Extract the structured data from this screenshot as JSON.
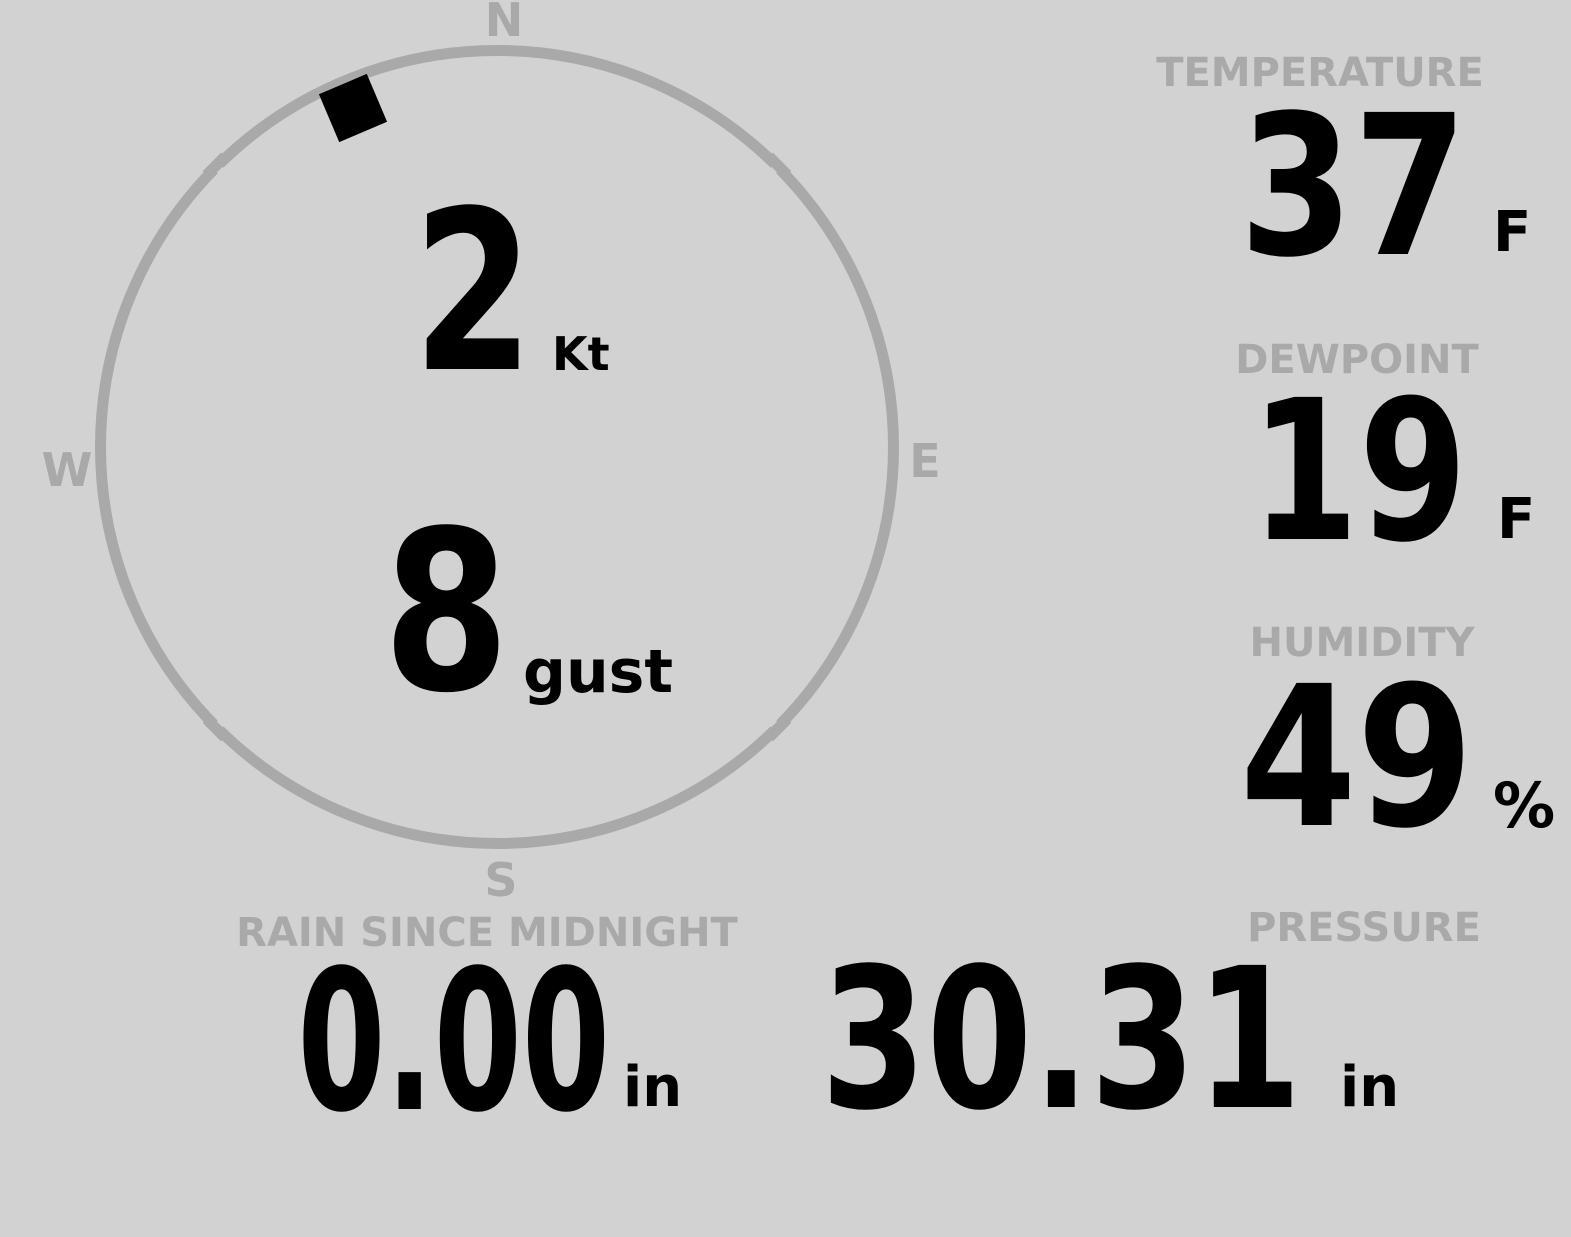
{
  "theme": {
    "background": "#d2d2d2",
    "muted": "#a9a9a9",
    "foreground": "#000000"
  },
  "wind": {
    "speed_value": "2",
    "speed_unit": "Kt",
    "gust_value": "8",
    "gust_unit": "gust",
    "direction_deg": 337,
    "cardinals": {
      "north": "N",
      "east": "E",
      "south": "S",
      "west": "W"
    }
  },
  "temperature": {
    "label": "TEMPERATURE",
    "value": "37",
    "unit": "F"
  },
  "dewpoint": {
    "label": "DEWPOINT",
    "value": "19",
    "unit": "F"
  },
  "humidity": {
    "label": "HUMIDITY",
    "value": "49",
    "unit": "%"
  },
  "rain": {
    "label": "RAIN SINCE MIDNIGHT",
    "value": "0.00",
    "unit": "in"
  },
  "pressure": {
    "label": "PRESSURE",
    "value": "30.31",
    "unit": "in"
  }
}
